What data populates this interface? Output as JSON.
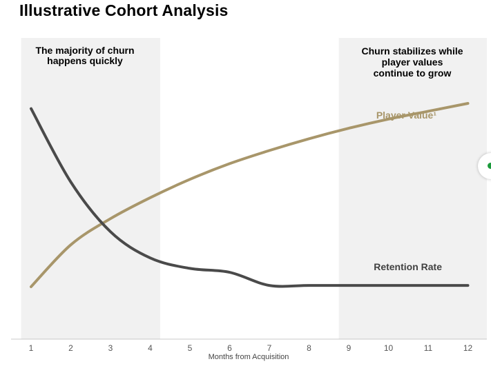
{
  "title": "Illustrative Cohort Analysis",
  "annotations": {
    "left": "The majority of churn\nhappens quickly",
    "right": "Churn stabilizes while\nplayer values\ncontinue to grow"
  },
  "colors": {
    "player_value": "#a8966a",
    "retention": "#4a4a4a",
    "shade": "#f1f1f1",
    "player_value_label": "#a8966a",
    "retention_label": "#404040"
  },
  "chart_data": {
    "type": "line",
    "x": [
      1,
      2,
      3,
      4,
      5,
      6,
      7,
      8,
      9,
      10,
      11,
      12
    ],
    "xlabel": "Months from Acquisition",
    "ylabel": "",
    "ylim": [
      0,
      100
    ],
    "shaded_x_ranges": [
      [
        0.75,
        4.25
      ],
      [
        8.75,
        12.5
      ]
    ],
    "series": [
      {
        "name": "Player Value¹",
        "values": [
          20,
          36,
          46,
          54,
          61,
          67,
          72,
          76.5,
          80.5,
          84,
          87,
          90
        ]
      },
      {
        "name": "Retention Rate",
        "values": [
          88,
          60,
          41,
          31,
          27,
          25.5,
          20.5,
          20.5,
          20.5,
          20.5,
          20.5,
          20.5
        ]
      }
    ]
  }
}
